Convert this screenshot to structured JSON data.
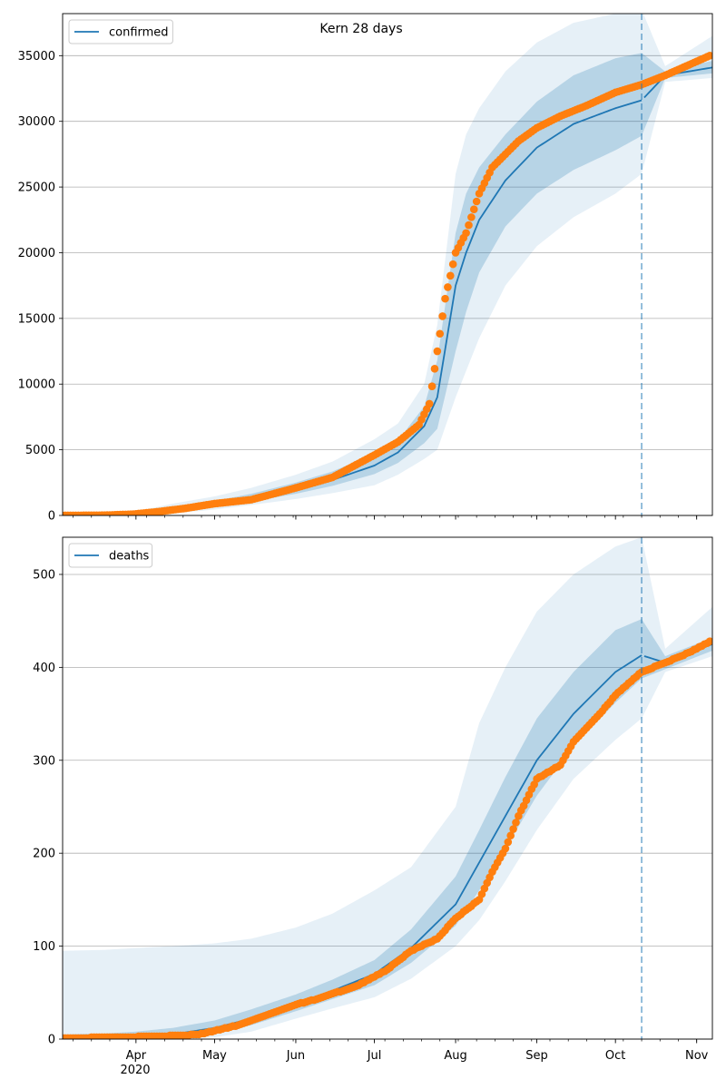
{
  "figure": {
    "title": "Kern 28 days"
  },
  "colors": {
    "model_line": "#1f77b4",
    "observed_points": "#ff7f0e",
    "band": "#1f77b4",
    "grid": "#b0b0b0",
    "forecast_line": "#1f77b4"
  },
  "x_axis": {
    "month_ticks": [
      {
        "date": "2020-04-01",
        "label": "Apr"
      },
      {
        "date": "2020-05-01",
        "label": "May"
      },
      {
        "date": "2020-06-01",
        "label": "Jun"
      },
      {
        "date": "2020-07-01",
        "label": "Jul"
      },
      {
        "date": "2020-08-01",
        "label": "Aug"
      },
      {
        "date": "2020-09-01",
        "label": "Sep"
      },
      {
        "date": "2020-10-01",
        "label": "Oct"
      },
      {
        "date": "2020-11-01",
        "label": "Nov"
      }
    ],
    "year_label": "2020",
    "range": [
      "2020-03-04",
      "2020-11-07"
    ]
  },
  "chart_data": [
    {
      "type": "line",
      "legend": [
        "confirmed"
      ],
      "legend_position": "top-left",
      "grid": "horizontal",
      "xlim": [
        "2020-03-04",
        "2020-11-07"
      ],
      "ylim": [
        0,
        38200
      ],
      "yticks": [
        0,
        5000,
        10000,
        15000,
        20000,
        25000,
        30000,
        35000
      ],
      "forecast_start": "2020-10-11",
      "model": {
        "name": "confirmed",
        "x": [
          "2020-03-04",
          "2020-03-20",
          "2020-04-01",
          "2020-04-15",
          "2020-05-01",
          "2020-05-15",
          "2020-06-01",
          "2020-06-15",
          "2020-07-01",
          "2020-07-10",
          "2020-07-20",
          "2020-07-25",
          "2020-08-01",
          "2020-08-05",
          "2020-08-10",
          "2020-08-20",
          "2020-09-01",
          "2020-09-15",
          "2020-10-01",
          "2020-10-11",
          "2020-10-20",
          "2020-11-07"
        ],
        "y": [
          0,
          0,
          60,
          450,
          850,
          1300,
          2000,
          2700,
          3800,
          4800,
          6800,
          9000,
          17500,
          20000,
          22500,
          25500,
          28000,
          29800,
          31000,
          31600,
          33500,
          34100
        ],
        "lower": [
          0,
          0,
          10,
          300,
          650,
          1050,
          1650,
          2250,
          3150,
          4000,
          5500,
          6600,
          12500,
          15500,
          18500,
          22000,
          24500,
          26300,
          27800,
          28900,
          33300,
          33650
        ],
        "upper": [
          30,
          60,
          150,
          650,
          1100,
          1650,
          2500,
          3350,
          4700,
          5700,
          8300,
          11800,
          21500,
          24500,
          26500,
          29000,
          31500,
          33500,
          34800,
          35200,
          33800,
          34600
        ],
        "lower_outer": [
          0,
          0,
          0,
          150,
          450,
          800,
          1250,
          1700,
          2300,
          3100,
          4300,
          5000,
          9000,
          11000,
          13500,
          17500,
          20500,
          22700,
          24500,
          26000,
          33000,
          33300
        ],
        "upper_outer": [
          80,
          150,
          300,
          900,
          1450,
          2100,
          3100,
          4100,
          5800,
          7000,
          10000,
          14500,
          26000,
          29000,
          31000,
          33800,
          36000,
          37500,
          38200,
          38500,
          34200,
          36500
        ]
      },
      "observed": {
        "x": [
          "2020-03-04",
          "2020-03-20",
          "2020-03-31",
          "2020-04-10",
          "2020-04-20",
          "2020-05-01",
          "2020-05-15",
          "2020-06-01",
          "2020-06-15",
          "2020-07-01",
          "2020-07-10",
          "2020-07-18",
          "2020-07-22",
          "2020-07-25",
          "2020-07-28",
          "2020-08-01",
          "2020-08-05",
          "2020-08-10",
          "2020-08-15",
          "2020-08-20",
          "2020-08-25",
          "2020-09-01",
          "2020-09-10",
          "2020-09-20",
          "2020-10-01",
          "2020-10-11",
          "2020-10-20",
          "2020-11-06"
        ],
        "y": [
          0,
          20,
          100,
          300,
          550,
          900,
          1200,
          2100,
          2900,
          4600,
          5600,
          6900,
          8500,
          12500,
          16500,
          20000,
          21500,
          24500,
          26500,
          27500,
          28500,
          29500,
          30400,
          31200,
          32200,
          32800,
          33500,
          35000
        ]
      }
    },
    {
      "type": "line",
      "legend": [
        "deaths"
      ],
      "legend_position": "top-left",
      "grid": "horizontal",
      "xlim": [
        "2020-03-04",
        "2020-11-07"
      ],
      "ylim": [
        0,
        540
      ],
      "yticks": [
        0,
        100,
        200,
        300,
        400,
        500
      ],
      "forecast_start": "2020-10-11",
      "model": {
        "name": "deaths",
        "x": [
          "2020-03-04",
          "2020-03-20",
          "2020-04-01",
          "2020-04-15",
          "2020-05-01",
          "2020-05-15",
          "2020-06-01",
          "2020-06-15",
          "2020-07-01",
          "2020-07-15",
          "2020-08-01",
          "2020-08-10",
          "2020-08-20",
          "2020-09-01",
          "2020-09-15",
          "2020-10-01",
          "2020-10-11",
          "2020-10-20",
          "2020-11-07"
        ],
        "y": [
          1,
          1,
          2,
          5,
          12,
          22,
          38,
          52,
          70,
          98,
          145,
          190,
          240,
          300,
          350,
          395,
          413,
          405,
          425
        ],
        "lower": [
          0,
          0,
          0,
          1,
          6,
          15,
          30,
          43,
          58,
          82,
          122,
          160,
          205,
          262,
          315,
          362,
          388,
          398,
          418
        ],
        "upper": [
          5,
          6,
          8,
          12,
          20,
          32,
          48,
          64,
          85,
          118,
          175,
          225,
          282,
          345,
          395,
          440,
          452,
          412,
          432
        ],
        "lower_outer": [
          0,
          0,
          0,
          0,
          2,
          8,
          22,
          33,
          45,
          65,
          100,
          128,
          170,
          225,
          280,
          322,
          345,
          395,
          412
        ],
        "upper_outer": [
          95,
          96,
          98,
          100,
          103,
          108,
          120,
          135,
          160,
          185,
          250,
          340,
          400,
          460,
          500,
          530,
          540,
          420,
          465
        ]
      },
      "observed": {
        "x": [
          "2020-03-04",
          "2020-03-25",
          "2020-04-10",
          "2020-04-25",
          "2020-05-10",
          "2020-05-20",
          "2020-06-01",
          "2020-06-10",
          "2020-06-25",
          "2020-07-05",
          "2020-07-15",
          "2020-07-25",
          "2020-08-01",
          "2020-08-10",
          "2020-08-15",
          "2020-08-20",
          "2020-08-25",
          "2020-09-01",
          "2020-09-10",
          "2020-09-15",
          "2020-09-25",
          "2020-10-01",
          "2020-10-11",
          "2020-10-20",
          "2020-10-30",
          "2020-11-06"
        ],
        "y": [
          1,
          2,
          3,
          5,
          15,
          25,
          37,
          44,
          58,
          73,
          95,
          108,
          130,
          150,
          180,
          205,
          240,
          280,
          295,
          320,
          350,
          370,
          395,
          405,
          417,
          428
        ]
      }
    }
  ]
}
